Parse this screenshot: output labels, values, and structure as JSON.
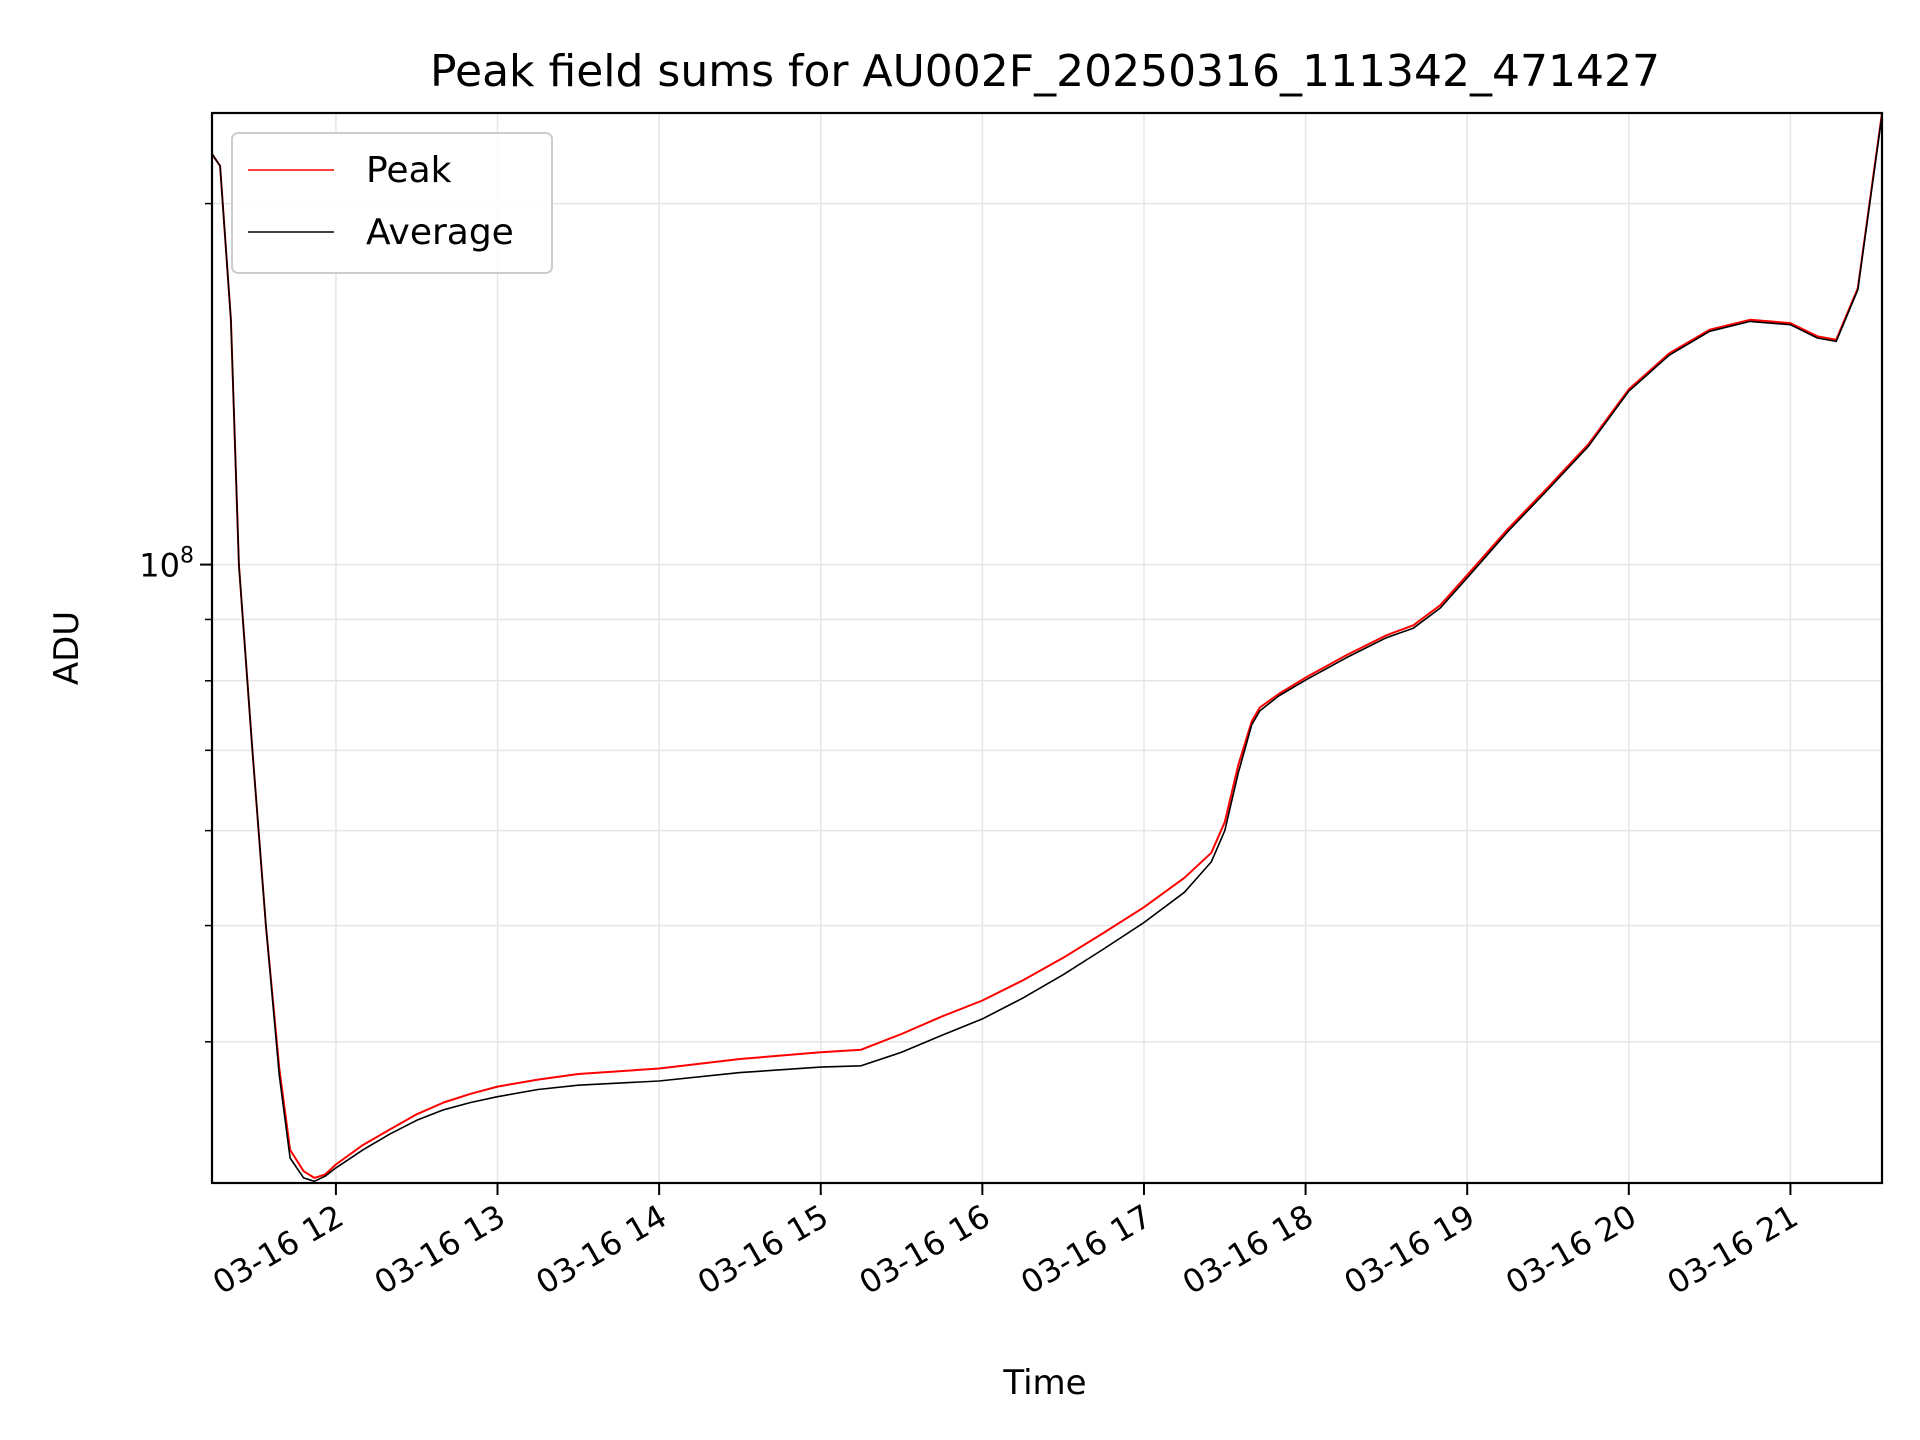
{
  "chart_data": {
    "type": "line",
    "title": "Peak field sums for AU002F_20250316_111342_471427",
    "xlabel": "Time",
    "ylabel": "ADU",
    "y_scale": "log",
    "grid": true,
    "legend_position": "top-left",
    "x_ticks": [
      "03-16 12",
      "03-16 13",
      "03-16 14",
      "03-16 15",
      "03-16 16",
      "03-16 17",
      "03-16 18",
      "03-16 19",
      "03-16 20",
      "03-16 21"
    ],
    "y_ticks": [
      {
        "value": 100000000,
        "base": "10",
        "exp": "8"
      }
    ],
    "xlim": [
      "2025-03-16 11:14",
      "2025-03-16 21:34"
    ],
    "ylim": [
      30500000,
      238000000
    ],
    "series": [
      {
        "name": "Peak",
        "color": "#ff0000",
        "points": [
          [
            "2025-03-16 11:14",
            220000000
          ],
          [
            "2025-03-16 11:17",
            215000000
          ],
          [
            "2025-03-16 11:21",
            160000000
          ],
          [
            "2025-03-16 11:24",
            100000000
          ],
          [
            "2025-03-16 11:29",
            70000000
          ],
          [
            "2025-03-16 11:34",
            50000000
          ],
          [
            "2025-03-16 11:39",
            38000000
          ],
          [
            "2025-03-16 11:43",
            32500000
          ],
          [
            "2025-03-16 11:48",
            31200000
          ],
          [
            "2025-03-16 11:52",
            30800000
          ],
          [
            "2025-03-16 11:56",
            31000000
          ],
          [
            "2025-03-16 12:00",
            31600000
          ],
          [
            "2025-03-16 12:10",
            32800000
          ],
          [
            "2025-03-16 12:20",
            33800000
          ],
          [
            "2025-03-16 12:30",
            34800000
          ],
          [
            "2025-03-16 12:40",
            35600000
          ],
          [
            "2025-03-16 12:50",
            36200000
          ],
          [
            "2025-03-16 13:00",
            36700000
          ],
          [
            "2025-03-16 13:15",
            37200000
          ],
          [
            "2025-03-16 13:30",
            37600000
          ],
          [
            "2025-03-16 14:00",
            38000000
          ],
          [
            "2025-03-16 14:30",
            38700000
          ],
          [
            "2025-03-16 15:00",
            39200000
          ],
          [
            "2025-03-16 15:15",
            39400000
          ],
          [
            "2025-03-16 15:30",
            40600000
          ],
          [
            "2025-03-16 15:45",
            42000000
          ],
          [
            "2025-03-16 16:00",
            43300000
          ],
          [
            "2025-03-16 16:15",
            45000000
          ],
          [
            "2025-03-16 16:30",
            47000000
          ],
          [
            "2025-03-16 16:45",
            49300000
          ],
          [
            "2025-03-16 17:00",
            51800000
          ],
          [
            "2025-03-16 17:15",
            54800000
          ],
          [
            "2025-03-16 17:25",
            57500000
          ],
          [
            "2025-03-16 17:30",
            61000000
          ],
          [
            "2025-03-16 17:35",
            68000000
          ],
          [
            "2025-03-16 17:40",
            74000000
          ],
          [
            "2025-03-16 17:43",
            76000000
          ],
          [
            "2025-03-16 17:50",
            78000000
          ],
          [
            "2025-03-16 18:00",
            80500000
          ],
          [
            "2025-03-16 18:15",
            84000000
          ],
          [
            "2025-03-16 18:30",
            87300000
          ],
          [
            "2025-03-16 18:40",
            89000000
          ],
          [
            "2025-03-16 18:50",
            92500000
          ],
          [
            "2025-03-16 19:00",
            98000000
          ],
          [
            "2025-03-16 19:15",
            107000000
          ],
          [
            "2025-03-16 19:30",
            116000000
          ],
          [
            "2025-03-16 19:45",
            126000000
          ],
          [
            "2025-03-16 20:00",
            140000000
          ],
          [
            "2025-03-16 20:15",
            150000000
          ],
          [
            "2025-03-16 20:30",
            157000000
          ],
          [
            "2025-03-16 20:45",
            160000000
          ],
          [
            "2025-03-16 21:00",
            159000000
          ],
          [
            "2025-03-16 21:10",
            155000000
          ],
          [
            "2025-03-16 21:17",
            154000000
          ],
          [
            "2025-03-16 21:25",
            170000000
          ],
          [
            "2025-03-16 21:34",
            238000000
          ]
        ]
      },
      {
        "name": "Average",
        "color": "#000000",
        "points": [
          [
            "2025-03-16 11:14",
            220000000
          ],
          [
            "2025-03-16 11:17",
            215000000
          ],
          [
            "2025-03-16 11:21",
            160000000
          ],
          [
            "2025-03-16 11:24",
            100000000
          ],
          [
            "2025-03-16 11:29",
            70000000
          ],
          [
            "2025-03-16 11:34",
            50000000
          ],
          [
            "2025-03-16 11:39",
            37500000
          ],
          [
            "2025-03-16 11:43",
            32000000
          ],
          [
            "2025-03-16 11:48",
            30800000
          ],
          [
            "2025-03-16 11:52",
            30600000
          ],
          [
            "2025-03-16 11:56",
            30900000
          ],
          [
            "2025-03-16 12:00",
            31400000
          ],
          [
            "2025-03-16 12:10",
            32500000
          ],
          [
            "2025-03-16 12:20",
            33500000
          ],
          [
            "2025-03-16 12:30",
            34400000
          ],
          [
            "2025-03-16 12:40",
            35100000
          ],
          [
            "2025-03-16 12:50",
            35600000
          ],
          [
            "2025-03-16 13:00",
            36000000
          ],
          [
            "2025-03-16 13:15",
            36500000
          ],
          [
            "2025-03-16 13:30",
            36800000
          ],
          [
            "2025-03-16 14:00",
            37100000
          ],
          [
            "2025-03-16 14:30",
            37700000
          ],
          [
            "2025-03-16 15:00",
            38100000
          ],
          [
            "2025-03-16 15:15",
            38200000
          ],
          [
            "2025-03-16 15:30",
            39200000
          ],
          [
            "2025-03-16 15:45",
            40500000
          ],
          [
            "2025-03-16 16:00",
            41800000
          ],
          [
            "2025-03-16 16:15",
            43500000
          ],
          [
            "2025-03-16 16:30",
            45500000
          ],
          [
            "2025-03-16 16:45",
            47800000
          ],
          [
            "2025-03-16 17:00",
            50300000
          ],
          [
            "2025-03-16 17:15",
            53300000
          ],
          [
            "2025-03-16 17:25",
            56500000
          ],
          [
            "2025-03-16 17:30",
            60000000
          ],
          [
            "2025-03-16 17:35",
            67000000
          ],
          [
            "2025-03-16 17:40",
            73500000
          ],
          [
            "2025-03-16 17:43",
            75500000
          ],
          [
            "2025-03-16 17:50",
            77700000
          ],
          [
            "2025-03-16 18:00",
            80100000
          ],
          [
            "2025-03-16 18:15",
            83600000
          ],
          [
            "2025-03-16 18:30",
            86900000
          ],
          [
            "2025-03-16 18:40",
            88500000
          ],
          [
            "2025-03-16 18:50",
            92000000
          ],
          [
            "2025-03-16 19:00",
            97500000
          ],
          [
            "2025-03-16 19:15",
            106500000
          ],
          [
            "2025-03-16 19:30",
            115500000
          ],
          [
            "2025-03-16 19:45",
            125500000
          ],
          [
            "2025-03-16 20:00",
            139500000
          ],
          [
            "2025-03-16 20:15",
            149500000
          ],
          [
            "2025-03-16 20:30",
            156500000
          ],
          [
            "2025-03-16 20:45",
            159500000
          ],
          [
            "2025-03-16 21:00",
            158500000
          ],
          [
            "2025-03-16 21:10",
            154500000
          ],
          [
            "2025-03-16 21:17",
            153500000
          ],
          [
            "2025-03-16 21:25",
            169500000
          ],
          [
            "2025-03-16 21:34",
            237000000
          ]
        ]
      }
    ]
  }
}
